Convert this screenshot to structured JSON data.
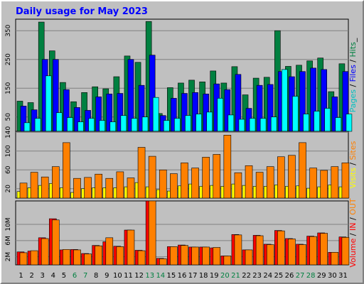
{
  "title": "Daily usage for May 2023",
  "colors": {
    "hits": "#008040",
    "files": "#0000ff",
    "pages": "#00ffff",
    "visits": "#ffff00",
    "sites": "#ff8000",
    "kbin": "#ff0000",
    "kbout": "#ff8000",
    "text_dark": "#000000",
    "text_green": "#008040"
  },
  "chart_data": [
    {
      "type": "bar",
      "panel": "hits-files-pages",
      "ytick_labels": [
        "50",
        "150",
        "250",
        "350"
      ],
      "ytick_values": [
        50,
        150,
        250,
        350
      ],
      "ylim": [
        0,
        390
      ],
      "right_label": [
        {
          "text": "Pages",
          "color": "#00c0c0"
        },
        {
          "text": " / ",
          "color": "#000000"
        },
        {
          "text": "Files",
          "color": "#0000ff"
        },
        {
          "text": " / ",
          "color": "#000000"
        },
        {
          "text": "Hits",
          "color": "#008040"
        },
        {
          "text": "_",
          "color": "#000000"
        }
      ],
      "series": [
        {
          "name": "Hits",
          "color": "#008040",
          "values": [
            105,
            100,
            380,
            280,
            170,
            103,
            135,
            155,
            148,
            190,
            262,
            240,
            382,
            62,
            152,
            168,
            178,
            172,
            210,
            168,
            225,
            127,
            185,
            188,
            350,
            226,
            230,
            245,
            255,
            138,
            235
          ]
        },
        {
          "name": "Files",
          "color": "#0000ff",
          "values": [
            88,
            75,
            250,
            250,
            145,
            83,
            73,
            120,
            130,
            132,
            250,
            160,
            265,
            55,
            115,
            132,
            135,
            130,
            165,
            145,
            198,
            80,
            160,
            163,
            208,
            190,
            208,
            220,
            215,
            120,
            208
          ]
        },
        {
          "name": "Pages",
          "color": "#00ffff",
          "values": [
            30,
            45,
            193,
            65,
            48,
            33,
            45,
            38,
            33,
            55,
            45,
            50,
            118,
            38,
            45,
            55,
            60,
            67,
            115,
            57,
            42,
            45,
            45,
            50,
            215,
            122,
            60,
            70,
            80,
            48,
            60
          ]
        }
      ]
    },
    {
      "type": "bar",
      "panel": "visits-sites",
      "ytick_labels": [
        "20",
        "60",
        "100",
        "140"
      ],
      "ytick_values": [
        20,
        60,
        100,
        140
      ],
      "ylim": [
        0,
        142
      ],
      "right_label": [
        {
          "text": "Visits",
          "color": "#ffff00"
        },
        {
          "text": " / ",
          "color": "#000000"
        },
        {
          "text": "Sites",
          "color": "#ff8000"
        }
      ],
      "series": [
        {
          "name": "Visits",
          "color": "#ffff00",
          "values": [
            14,
            22,
            27,
            31,
            22,
            12,
            20,
            22,
            22,
            22,
            24,
            33,
            24,
            18,
            15,
            26,
            30,
            25,
            27,
            25,
            30,
            27,
            25,
            25,
            28,
            25,
            26,
            21,
            24,
            28,
            24
          ]
        },
        {
          "name": "Sites",
          "color": "#ff8000",
          "values": [
            32,
            55,
            45,
            67,
            118,
            42,
            44,
            51,
            42,
            56,
            43,
            108,
            89,
            60,
            52,
            75,
            64,
            87,
            93,
            134,
            54,
            69,
            55,
            67,
            88,
            91,
            118,
            64,
            59,
            67,
            75
          ]
        }
      ]
    },
    {
      "type": "bar",
      "panel": "volume",
      "ytick_labels": [
        "2M",
        "6M",
        "10M"
      ],
      "ytick_values": [
        2,
        6,
        10
      ],
      "ylim": [
        0,
        15.8
      ],
      "right_label": [
        {
          "text": "Volume",
          "color": "#ff0000"
        },
        {
          "text": " / ",
          "color": "#000000"
        },
        {
          "text": "IN",
          "color": "#ff0000"
        },
        {
          "text": " / ",
          "color": "#000000"
        },
        {
          "text": "OUT",
          "color": "#ff8000"
        }
      ],
      "series": [
        {
          "name": "IN",
          "color": "#ff0000",
          "values": [
            3.2,
            3.4,
            6.7,
            11.4,
            3.7,
            3.8,
            2.8,
            4.8,
            5.7,
            4.6,
            8.6,
            3.6,
            16.0,
            1.6,
            4.5,
            4.9,
            4.4,
            4.4,
            4.2,
            2.2,
            7.5,
            3.7,
            7.3,
            5.1,
            8.5,
            6.5,
            5.1,
            7.1,
            7.9,
            3.1,
            6.9
          ]
        },
        {
          "name": "OUT",
          "color": "#ff8000",
          "values": [
            3.0,
            3.5,
            6.5,
            11.1,
            3.8,
            3.7,
            2.7,
            4.7,
            6.7,
            4.5,
            8.6,
            3.5,
            15.9,
            1.5,
            4.5,
            4.8,
            4.4,
            4.4,
            4.3,
            2.2,
            7.4,
            3.7,
            7.2,
            5.0,
            8.4,
            6.4,
            5.0,
            7.0,
            7.8,
            3.1,
            6.8
          ]
        }
      ]
    }
  ],
  "days": [
    "1",
    "2",
    "3",
    "4",
    "5",
    "6",
    "7",
    "8",
    "9",
    "10",
    "11",
    "12",
    "13",
    "14",
    "15",
    "16",
    "17",
    "18",
    "19",
    "20",
    "21",
    "22",
    "23",
    "24",
    "25",
    "26",
    "27",
    "28",
    "29",
    "30",
    "31"
  ],
  "weekend_days": [
    6,
    7,
    13,
    14,
    20,
    21,
    27,
    28
  ]
}
